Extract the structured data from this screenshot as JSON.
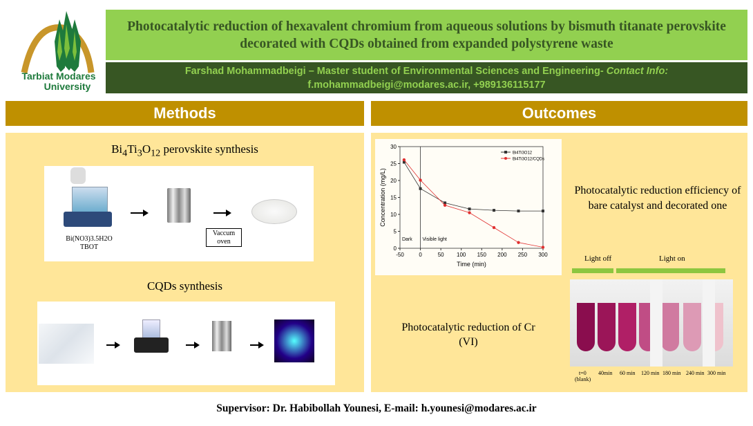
{
  "logo": {
    "line1": "Tarbiat Modares",
    "line2": "University",
    "colors": {
      "arc": "#c8962a",
      "trees": "#1e7a3c"
    }
  },
  "header": {
    "title": "Photocatalytic reduction of hexavalent chromium from aqueous solutions by bismuth titanate perovskite decorated with CQDs obtained from expanded polystyrene waste",
    "author": "Farshad Mohammadbeigi – Master student of Environmental Sciences and Engineering-",
    "contact_label": "Contact Info:",
    "contact": "f.mohammadbeigi@modares.ac.ir, +989136115177"
  },
  "methods": {
    "heading": "Methods",
    "perovskite": {
      "title_pre": "Bi",
      "sub1": "4",
      "mid1": "Ti",
      "sub2": "3",
      "mid2": "O",
      "sub3": "12",
      "title_post": " perovskite synthesis",
      "reagent1": "Bi(NO3)3.5H2O",
      "reagent2": "TBOT",
      "oven_line1": "Vaccum",
      "oven_line2": "oven"
    },
    "cqds": {
      "title": "CQDs synthesis"
    }
  },
  "outcomes": {
    "heading": "Outcomes",
    "efficiency_caption": "Photocatalytic reduction efficiency of bare catalyst and decorated one",
    "cr_caption": "Photocatalytic reduction of Cr (VI)",
    "photo": {
      "light_off": "Light off",
      "light_on": "Light on",
      "labels": [
        "t=0",
        "40min",
        "60 min",
        "120 min",
        "180 min",
        "240 min",
        "300 min"
      ],
      "blank": "(blank)"
    }
  },
  "chart_data": {
    "type": "line",
    "xlabel": "Time (min)",
    "ylabel": "Concentration (mg/L)",
    "xlim": [
      -50,
      300
    ],
    "ylim": [
      0,
      30
    ],
    "xticks": [
      -50,
      0,
      50,
      100,
      150,
      200,
      250,
      300
    ],
    "yticks": [
      0,
      5,
      10,
      15,
      20,
      25,
      30
    ],
    "x": [
      -40,
      0,
      60,
      120,
      180,
      240,
      300
    ],
    "annotations": [
      "Dark",
      "Visible light"
    ],
    "vline_x": 0,
    "legend": "top-right",
    "series": [
      {
        "name": "Bi4Ti3O12",
        "color": "#333333",
        "marker": "square",
        "values": [
          25.4,
          17.6,
          13.4,
          11.6,
          11.2,
          11.0,
          11.0
        ]
      },
      {
        "name": "Bi4Ti3O12/CQDs",
        "color": "#e03030",
        "marker": "circle",
        "values": [
          26.1,
          20.1,
          12.7,
          10.5,
          6.1,
          1.7,
          0.3
        ]
      }
    ]
  },
  "footer": {
    "text": "Supervisor: Dr. Habibollah Younesi, E-mail: h.younesi@modares.ac.ir"
  }
}
